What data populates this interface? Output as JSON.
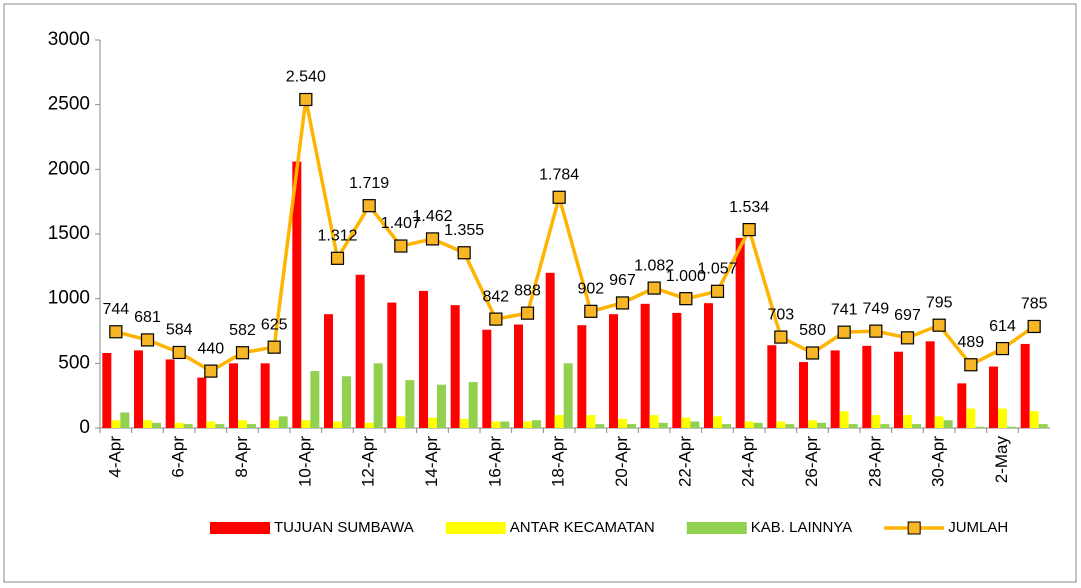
{
  "chart_data": {
    "type": "bar",
    "categories": [
      "4-Apr",
      null,
      "6-Apr",
      null,
      "8-Apr",
      null,
      "10-Apr",
      null,
      "12-Apr",
      null,
      "14-Apr",
      null,
      "16-Apr",
      null,
      "18-Apr",
      null,
      "20-Apr",
      null,
      "22-Apr",
      null,
      "24-Apr",
      null,
      "26-Apr",
      null,
      "28-Apr",
      null,
      "30-Apr",
      null,
      "2-May",
      null
    ],
    "series": [
      {
        "name": "TUJUAN SUMBAWA",
        "color": "#ff0000",
        "values": [
          580,
          600,
          530,
          390,
          500,
          500,
          2060,
          880,
          1185,
          970,
          1060,
          950,
          760,
          800,
          1200,
          795,
          880,
          960,
          890,
          965,
          1470,
          640,
          510,
          600,
          635,
          590,
          670,
          345,
          475,
          650
        ]
      },
      {
        "name": "ANTAR KECAMATAN",
        "color": "#ffff00",
        "values": [
          60,
          60,
          40,
          50,
          60,
          60,
          60,
          50,
          40,
          90,
          80,
          70,
          50,
          50,
          100,
          100,
          70,
          100,
          80,
          90,
          50,
          50,
          60,
          130,
          100,
          100,
          90,
          150,
          150,
          130
        ]
      },
      {
        "name": "KAB. LAINNYA",
        "color": "#92d050",
        "values": [
          120,
          40,
          30,
          30,
          30,
          90,
          440,
          400,
          500,
          370,
          335,
          355,
          50,
          60,
          500,
          30,
          30,
          40,
          50,
          30,
          40,
          30,
          40,
          30,
          30,
          30,
          60,
          10,
          10,
          30
        ]
      },
      {
        "name": "JUMLAH",
        "color": "#ffb400",
        "type": "line",
        "marker_color": "#f6b626",
        "values": [
          744,
          681,
          584,
          440,
          582,
          625,
          2540,
          1312,
          1719,
          1407,
          1462,
          1355,
          842,
          888,
          1784,
          902,
          967,
          1082,
          1000,
          1057,
          1534,
          703,
          580,
          741,
          749,
          697,
          795,
          489,
          614,
          785
        ],
        "value_labels": [
          "744",
          "681",
          "584",
          "440",
          "582",
          "625",
          "2.540",
          "1.312",
          "1.719",
          "1.407",
          "1.462",
          "1.355",
          "842",
          "888",
          "1.784",
          "902",
          "967",
          "1.082",
          "1.000",
          "1.057",
          "1.534",
          "703",
          "580",
          "741",
          "749",
          "697",
          "795",
          "489",
          "614",
          "785"
        ]
      }
    ],
    "ylim": [
      0,
      3000
    ],
    "yticks": [
      0,
      500,
      1000,
      1500,
      2000,
      2500,
      3000
    ],
    "grid": false,
    "legend": "bottom"
  }
}
